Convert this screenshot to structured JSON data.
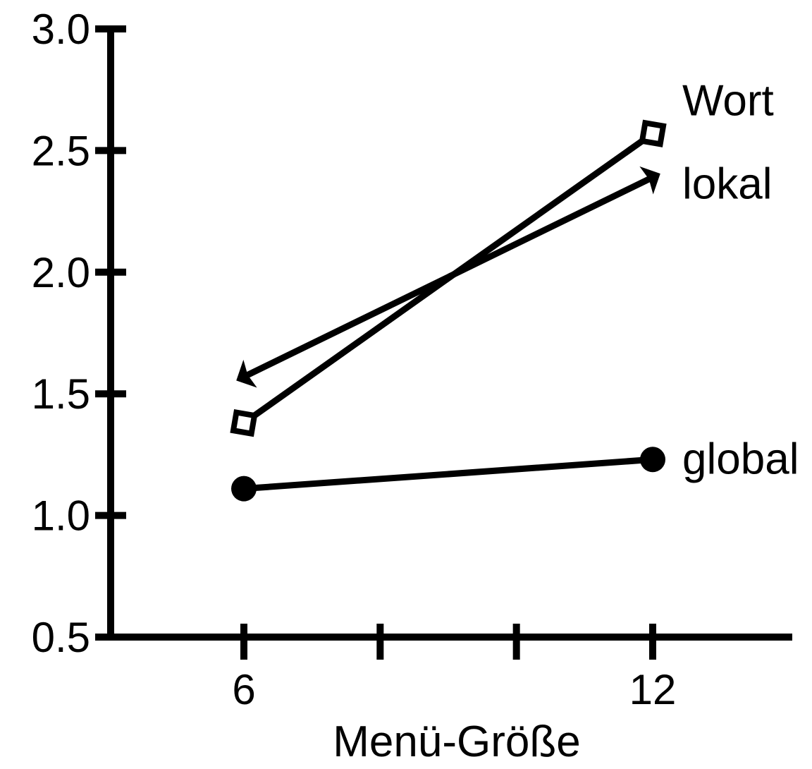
{
  "chart_data": {
    "type": "line",
    "xlabel": "Menü-Größe",
    "ylabel": "",
    "x": [
      6,
      12
    ],
    "x_ticks": [
      6,
      8,
      10,
      12
    ],
    "x_tick_labels": [
      "6",
      "",
      "",
      "12"
    ],
    "xlim": [
      4.1,
      14.0
    ],
    "y_ticks": [
      0.5,
      1.0,
      1.5,
      2.0,
      2.5,
      3.0
    ],
    "y_tick_labels": [
      "0.5",
      "1.0",
      "1.5",
      "2.0",
      "2.5",
      "3.0"
    ],
    "ylim": [
      0.5,
      3.0
    ],
    "grid": false,
    "legend": "labels at line ends",
    "series": [
      {
        "name": "Wort",
        "marker": "open-diamond",
        "values": [
          1.38,
          2.57
        ]
      },
      {
        "name": "lokal",
        "marker": "filled-triangle",
        "values": [
          1.57,
          2.39
        ]
      },
      {
        "name": "global",
        "marker": "filled-circle",
        "values": [
          1.11,
          1.23
        ]
      }
    ]
  }
}
